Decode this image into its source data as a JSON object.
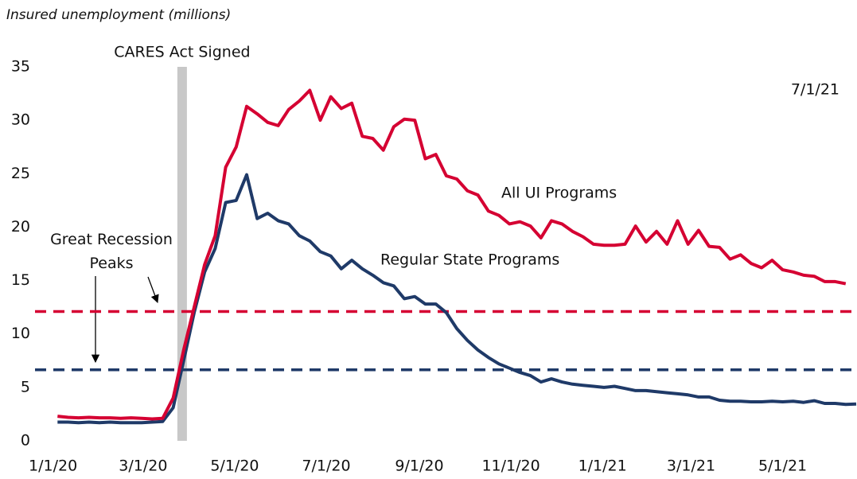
{
  "chart_data": {
    "type": "line",
    "ylabel": "Insured unemployment (millions)",
    "x": [
      "1/4/20",
      "1/11/20",
      "1/18/20",
      "1/25/20",
      "2/1/20",
      "2/8/20",
      "2/15/20",
      "2/22/20",
      "2/29/20",
      "3/7/20",
      "3/14/20",
      "3/21/20",
      "3/28/20",
      "4/4/20",
      "4/11/20",
      "4/18/20",
      "4/25/20",
      "5/2/20",
      "5/9/20",
      "5/16/20",
      "5/23/20",
      "5/30/20",
      "6/6/20",
      "6/13/20",
      "6/20/20",
      "6/27/20",
      "7/4/20",
      "7/11/20",
      "7/18/20",
      "7/25/20",
      "8/1/20",
      "8/8/20",
      "8/15/20",
      "8/22/20",
      "8/29/20",
      "9/5/20",
      "9/12/20",
      "9/19/20",
      "9/26/20",
      "10/3/20",
      "10/10/20",
      "10/17/20",
      "10/24/20",
      "10/31/20",
      "11/7/20",
      "11/14/20",
      "11/21/20",
      "11/28/20",
      "12/5/20",
      "12/12/20",
      "12/19/20",
      "12/26/20",
      "1/2/21",
      "1/9/21",
      "1/16/21",
      "1/23/21",
      "1/30/21",
      "2/6/21",
      "2/13/21",
      "2/20/21",
      "2/27/21",
      "3/6/21",
      "3/13/21",
      "3/20/21",
      "3/27/21",
      "4/3/21",
      "4/10/21",
      "4/17/21",
      "4/24/21",
      "5/1/21",
      "5/8/21",
      "5/15/21",
      "5/22/21",
      "5/29/21",
      "6/5/21",
      "6/12/21",
      "6/19/21"
    ],
    "series": [
      {
        "name": "All UI Programs",
        "color": "#d50032",
        "values": [
          2.3,
          2.2,
          2.15,
          2.2,
          2.15,
          2.15,
          2.1,
          2.15,
          2.1,
          2.05,
          2.1,
          4,
          8.5,
          12.5,
          16.5,
          19.2,
          25.6,
          27.5,
          31.3,
          30.6,
          29.8,
          29.5,
          31,
          31.8,
          32.8,
          30,
          32.2,
          31.1,
          31.6,
          28.5,
          28.3,
          27.2,
          29.4,
          30.1,
          30,
          26.4,
          26.8,
          24.8,
          24.5,
          23.4,
          23,
          21.5,
          21.1,
          20.3,
          20.5,
          20.1,
          19,
          20.6,
          20.3,
          19.6,
          19.1,
          18.4,
          18.3,
          18.3,
          18.4,
          20.1,
          18.6,
          19.6,
          18.4,
          20.6,
          18.4,
          19.7,
          18.2,
          18.1,
          17,
          17.4,
          16.6,
          16.2,
          16.9,
          16,
          15.8,
          15.5,
          15.4,
          14.9,
          14.9,
          14.7,
          null
        ]
      },
      {
        "name": "Regular State Programs",
        "color": "#1f3a68",
        "values": [
          1.75,
          1.75,
          1.7,
          1.75,
          1.7,
          1.75,
          1.7,
          1.7,
          1.7,
          1.75,
          1.8,
          3.1,
          7.5,
          12,
          15.8,
          18,
          22.3,
          22.5,
          24.9,
          20.8,
          21.3,
          20.6,
          20.3,
          19.2,
          18.7,
          17.7,
          17.3,
          16.1,
          16.9,
          16.1,
          15.5,
          14.8,
          14.5,
          13.3,
          13.5,
          12.8,
          12.8,
          12,
          10.5,
          9.4,
          8.5,
          7.8,
          7.2,
          6.8,
          6.4,
          6.1,
          5.5,
          5.8,
          5.5,
          5.3,
          5.2,
          5.1,
          5.0,
          5.1,
          4.9,
          4.7,
          4.7,
          4.6,
          4.5,
          4.4,
          4.3,
          4.1,
          4.1,
          3.8,
          3.7,
          3.7,
          3.65,
          3.65,
          3.7,
          3.65,
          3.7,
          3.6,
          3.75,
          3.5,
          3.5,
          3.4,
          3.45
        ]
      }
    ],
    "hlines": [
      {
        "value": 12.1,
        "color": "#d50032"
      },
      {
        "value": 6.65,
        "color": "#1f3a68"
      }
    ],
    "hline_label": "Great Recession Peaks",
    "vline": {
      "x": "3/27/20",
      "label": "CARES Act Signed",
      "color": "#c8c8c8"
    },
    "date_note": "7/1/21",
    "xlim": [
      "12/20/19",
      "6/19/21"
    ],
    "xticks": [
      "1/1/20",
      "3/1/20",
      "5/1/20",
      "7/1/20",
      "9/1/20",
      "11/1/20",
      "1/1/21",
      "3/1/21",
      "5/1/21"
    ],
    "ylim": [
      0,
      35
    ],
    "yticks": [
      0,
      5,
      10,
      15,
      20,
      25,
      30,
      35
    ],
    "grid": false
  }
}
